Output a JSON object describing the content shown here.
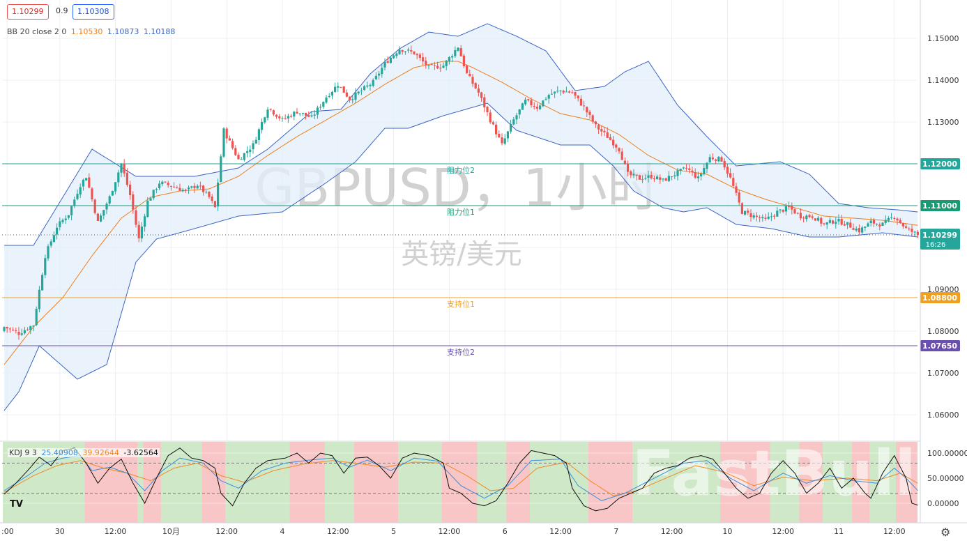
{
  "colors": {
    "up": "#26a69a",
    "down": "#ef5350",
    "bb_basis": "#f07d1a",
    "bb_band": "#3a63c4",
    "bb_fill": "#e3eff9",
    "k_line": "#3a8fdc",
    "d_line": "#f08a24",
    "j_line": "#111111",
    "bull_zone": "#cfe8c8",
    "bear_zone": "#f8c6c6",
    "resistance": "#22a69a",
    "support1": "#f0a020",
    "support2": "#6b4fb0"
  },
  "header": {
    "bid": "1.10299",
    "spread": "0.9",
    "ask": "1.10308",
    "bb_label": "BB 20 close 2 0",
    "bb_basis": "1.10530",
    "bb_upper": "1.10873",
    "bb_lower": "1.10188"
  },
  "watermark": {
    "title": "GBPUSD，1小时",
    "subtitle": "英镑/美元",
    "brand": "FastBull"
  },
  "levels": [
    {
      "label": "阻力位2",
      "value": 1.12,
      "tag": "1.12000",
      "color": "#22a69a"
    },
    {
      "label": "阻力位1",
      "value": 1.11,
      "tag": "1.11000",
      "color": "#1a9a72"
    },
    {
      "label": "支持位1",
      "value": 1.088,
      "tag": "1.08800",
      "color": "#f0a020"
    },
    {
      "label": "支持位2",
      "value": 1.0765,
      "tag": "1.07650",
      "color": "#6b4fb0"
    }
  ],
  "price_tag": {
    "value": 1.10299,
    "text": "1.10299",
    "countdown": "16:26"
  },
  "kdj": {
    "label": "KDJ 9 3",
    "k": "25.40908",
    "d": "39.92644",
    "j": "-3.62564"
  },
  "chart_data": {
    "type": "candlestick",
    "symbol": "GBPUSD",
    "interval": "1h",
    "ylim": [
      1.055,
      1.155
    ],
    "y_ticks": [
      "1.15000",
      "1.14000",
      "1.13000",
      "1.12000",
      "1.11000",
      "1.10000",
      "1.09000",
      "1.08000",
      "1.07000",
      "1.06000"
    ],
    "x_ticks": [
      ":00",
      "30",
      "12:00",
      "10月",
      "12:00",
      "4",
      "12:00",
      "5",
      "12:00",
      "6",
      "12:00",
      "7",
      "12:00",
      "10",
      "12:00",
      "11",
      "12:00"
    ],
    "close_path": [
      [
        0,
        1.081
      ],
      [
        5,
        1.0795
      ],
      [
        10,
        1.0815
      ],
      [
        14,
        1.098
      ],
      [
        18,
        1.105
      ],
      [
        22,
        1.108
      ],
      [
        26,
        1.115
      ],
      [
        28,
        1.117
      ],
      [
        32,
        1.106
      ],
      [
        36,
        1.112
      ],
      [
        40,
        1.12
      ],
      [
        43,
        1.1125
      ],
      [
        46,
        1.102
      ],
      [
        49,
        1.111
      ],
      [
        53,
        1.1155
      ],
      [
        58,
        1.1145
      ],
      [
        62,
        1.1135
      ],
      [
        66,
        1.115
      ],
      [
        70,
        1.112
      ],
      [
        72,
        1.1095
      ],
      [
        75,
        1.128
      ],
      [
        80,
        1.121
      ],
      [
        85,
        1.1245
      ],
      [
        90,
        1.1335
      ],
      [
        95,
        1.1305
      ],
      [
        100,
        1.1325
      ],
      [
        105,
        1.131
      ],
      [
        110,
        1.136
      ],
      [
        114,
        1.139
      ],
      [
        118,
        1.1355
      ],
      [
        122,
        1.1375
      ],
      [
        126,
        1.1395
      ],
      [
        130,
        1.144
      ],
      [
        135,
        1.1475
      ],
      [
        140,
        1.1465
      ],
      [
        145,
        1.143
      ],
      [
        150,
        1.1435
      ],
      [
        155,
        1.148
      ],
      [
        158,
        1.1415
      ],
      [
        162,
        1.137
      ],
      [
        166,
        1.1305
      ],
      [
        170,
        1.1245
      ],
      [
        174,
        1.1305
      ],
      [
        178,
        1.135
      ],
      [
        182,
        1.1335
      ],
      [
        186,
        1.1365
      ],
      [
        190,
        1.1375
      ],
      [
        194,
        1.137
      ],
      [
        198,
        1.1335
      ],
      [
        202,
        1.129
      ],
      [
        206,
        1.1265
      ],
      [
        210,
        1.1235
      ],
      [
        213,
        1.1175
      ],
      [
        217,
        1.1165
      ],
      [
        221,
        1.117
      ],
      [
        225,
        1.116
      ],
      [
        229,
        1.1175
      ],
      [
        233,
        1.119
      ],
      [
        237,
        1.1165
      ],
      [
        241,
        1.1215
      ],
      [
        245,
        1.121
      ],
      [
        248,
        1.1165
      ],
      [
        252,
        1.1085
      ],
      [
        256,
        1.1075
      ],
      [
        260,
        1.1065
      ],
      [
        264,
        1.1085
      ],
      [
        268,
        1.1095
      ],
      [
        272,
        1.1075
      ],
      [
        276,
        1.1075
      ],
      [
        280,
        1.1055
      ],
      [
        284,
        1.1065
      ],
      [
        288,
        1.1055
      ],
      [
        292,
        1.104
      ],
      [
        296,
        1.106
      ],
      [
        300,
        1.1055
      ],
      [
        304,
        1.1075
      ],
      [
        308,
        1.1045
      ],
      [
        311,
        1.1034
      ],
      [
        312,
        1.10299
      ]
    ],
    "bb_upper_path": [
      [
        0,
        1.1005
      ],
      [
        10,
        1.1005
      ],
      [
        20,
        1.112
      ],
      [
        30,
        1.1235
      ],
      [
        45,
        1.117
      ],
      [
        65,
        1.117
      ],
      [
        80,
        1.119
      ],
      [
        90,
        1.1235
      ],
      [
        105,
        1.1325
      ],
      [
        115,
        1.133
      ],
      [
        125,
        1.1415
      ],
      [
        135,
        1.1475
      ],
      [
        145,
        1.1515
      ],
      [
        155,
        1.1505
      ],
      [
        165,
        1.1535
      ],
      [
        175,
        1.1505
      ],
      [
        185,
        1.147
      ],
      [
        195,
        1.1375
      ],
      [
        205,
        1.1385
      ],
      [
        212,
        1.142
      ],
      [
        220,
        1.1445
      ],
      [
        230,
        1.134
      ],
      [
        240,
        1.1265
      ],
      [
        250,
        1.1195
      ],
      [
        265,
        1.1205
      ],
      [
        275,
        1.1175
      ],
      [
        285,
        1.1105
      ],
      [
        295,
        1.1095
      ],
      [
        305,
        1.109
      ],
      [
        312,
        1.1085
      ]
    ],
    "bb_lower_path": [
      [
        0,
        1.061
      ],
      [
        5,
        1.0655
      ],
      [
        12,
        1.0765
      ],
      [
        25,
        1.0685
      ],
      [
        35,
        1.072
      ],
      [
        45,
        1.0965
      ],
      [
        52,
        1.102
      ],
      [
        65,
        1.1045
      ],
      [
        80,
        1.1075
      ],
      [
        95,
        1.1085
      ],
      [
        110,
        1.1155
      ],
      [
        120,
        1.1205
      ],
      [
        130,
        1.1285
      ],
      [
        138,
        1.1285
      ],
      [
        150,
        1.1315
      ],
      [
        165,
        1.1345
      ],
      [
        175,
        1.128
      ],
      [
        190,
        1.1245
      ],
      [
        200,
        1.1245
      ],
      [
        208,
        1.1195
      ],
      [
        215,
        1.1135
      ],
      [
        225,
        1.1095
      ],
      [
        232,
        1.1085
      ],
      [
        240,
        1.1095
      ],
      [
        250,
        1.1055
      ],
      [
        262,
        1.1045
      ],
      [
        275,
        1.1025
      ],
      [
        285,
        1.1025
      ],
      [
        300,
        1.1035
      ],
      [
        312,
        1.1025
      ]
    ],
    "bb_basis_path": [
      [
        0,
        1.072
      ],
      [
        10,
        1.081
      ],
      [
        20,
        1.088
      ],
      [
        30,
        1.098
      ],
      [
        40,
        1.107
      ],
      [
        50,
        1.112
      ],
      [
        60,
        1.1135
      ],
      [
        70,
        1.114
      ],
      [
        80,
        1.117
      ],
      [
        90,
        1.122
      ],
      [
        100,
        1.1265
      ],
      [
        110,
        1.1305
      ],
      [
        120,
        1.1345
      ],
      [
        130,
        1.139
      ],
      [
        140,
        1.143
      ],
      [
        150,
        1.1445
      ],
      [
        155,
        1.1445
      ],
      [
        160,
        1.143
      ],
      [
        170,
        1.1395
      ],
      [
        180,
        1.1355
      ],
      [
        190,
        1.132
      ],
      [
        200,
        1.1305
      ],
      [
        210,
        1.127
      ],
      [
        220,
        1.122
      ],
      [
        230,
        1.1185
      ],
      [
        240,
        1.1175
      ],
      [
        250,
        1.114
      ],
      [
        260,
        1.1115
      ],
      [
        270,
        1.1095
      ],
      [
        280,
        1.1075
      ],
      [
        290,
        1.107
      ],
      [
        300,
        1.1065
      ],
      [
        312,
        1.1053
      ]
    ],
    "kdj_ylim": [
      -30,
      130
    ],
    "kdj_ticks": [
      "100.00000",
      "50.00000",
      "0.00000"
    ],
    "kdj_zones": [
      [
        "bull",
        0,
        28
      ],
      [
        "bear",
        28,
        46
      ],
      [
        "bull",
        46,
        48
      ],
      [
        "bear",
        48,
        54
      ],
      [
        "bull",
        54,
        68
      ],
      [
        "bear",
        68,
        76
      ],
      [
        "bull",
        76,
        98
      ],
      [
        "bear",
        98,
        110
      ],
      [
        "bull",
        110,
        120
      ],
      [
        "bear",
        120,
        135
      ],
      [
        "bull",
        135,
        150
      ],
      [
        "bear",
        150,
        162
      ],
      [
        "bull",
        162,
        172
      ],
      [
        "bear",
        172,
        180
      ],
      [
        "bull",
        180,
        200
      ],
      [
        "bear",
        200,
        215
      ],
      [
        "bull",
        215,
        245
      ],
      [
        "bear",
        245,
        262
      ],
      [
        "bull",
        262,
        272
      ],
      [
        "bear",
        272,
        280
      ],
      [
        "bull",
        280,
        290
      ],
      [
        "bear",
        290,
        296
      ],
      [
        "bull",
        296,
        305
      ],
      [
        "bear",
        305,
        312
      ]
    ],
    "kdj_j_path": [
      [
        0,
        18
      ],
      [
        4,
        40
      ],
      [
        8,
        65
      ],
      [
        12,
        92
      ],
      [
        16,
        75
      ],
      [
        20,
        105
      ],
      [
        24,
        110
      ],
      [
        28,
        80
      ],
      [
        32,
        40
      ],
      [
        36,
        70
      ],
      [
        40,
        88
      ],
      [
        44,
        40
      ],
      [
        48,
        0
      ],
      [
        52,
        50
      ],
      [
        56,
        95
      ],
      [
        60,
        110
      ],
      [
        64,
        90
      ],
      [
        68,
        85
      ],
      [
        72,
        70
      ],
      [
        74,
        20
      ],
      [
        78,
        -5
      ],
      [
        82,
        40
      ],
      [
        86,
        70
      ],
      [
        90,
        85
      ],
      [
        96,
        90
      ],
      [
        100,
        100
      ],
      [
        104,
        80
      ],
      [
        108,
        100
      ],
      [
        112,
        95
      ],
      [
        116,
        60
      ],
      [
        120,
        90
      ],
      [
        124,
        92
      ],
      [
        128,
        75
      ],
      [
        132,
        50
      ],
      [
        136,
        90
      ],
      [
        140,
        100
      ],
      [
        145,
        95
      ],
      [
        150,
        80
      ],
      [
        152,
        30
      ],
      [
        156,
        20
      ],
      [
        160,
        0
      ],
      [
        164,
        -5
      ],
      [
        168,
        5
      ],
      [
        172,
        40
      ],
      [
        176,
        80
      ],
      [
        180,
        105
      ],
      [
        184,
        100
      ],
      [
        188,
        95
      ],
      [
        192,
        80
      ],
      [
        194,
        30
      ],
      [
        198,
        -5
      ],
      [
        202,
        -15
      ],
      [
        206,
        -10
      ],
      [
        210,
        10
      ],
      [
        214,
        20
      ],
      [
        218,
        30
      ],
      [
        222,
        60
      ],
      [
        226,
        70
      ],
      [
        230,
        75
      ],
      [
        234,
        90
      ],
      [
        238,
        95
      ],
      [
        242,
        88
      ],
      [
        246,
        60
      ],
      [
        250,
        30
      ],
      [
        254,
        10
      ],
      [
        258,
        20
      ],
      [
        262,
        60
      ],
      [
        266,
        85
      ],
      [
        270,
        60
      ],
      [
        274,
        20
      ],
      [
        278,
        40
      ],
      [
        282,
        70
      ],
      [
        286,
        30
      ],
      [
        290,
        50
      ],
      [
        294,
        20
      ],
      [
        296,
        10
      ],
      [
        300,
        60
      ],
      [
        304,
        95
      ],
      [
        308,
        50
      ],
      [
        310,
        0
      ],
      [
        312,
        -3.6
      ]
    ],
    "kdj_k_path": [
      [
        0,
        25
      ],
      [
        8,
        55
      ],
      [
        14,
        80
      ],
      [
        20,
        90
      ],
      [
        26,
        95
      ],
      [
        30,
        65
      ],
      [
        36,
        72
      ],
      [
        42,
        60
      ],
      [
        48,
        25
      ],
      [
        54,
        65
      ],
      [
        60,
        90
      ],
      [
        68,
        80
      ],
      [
        74,
        45
      ],
      [
        80,
        30
      ],
      [
        88,
        65
      ],
      [
        96,
        80
      ],
      [
        104,
        86
      ],
      [
        112,
        90
      ],
      [
        118,
        72
      ],
      [
        124,
        86
      ],
      [
        132,
        65
      ],
      [
        140,
        90
      ],
      [
        148,
        84
      ],
      [
        156,
        35
      ],
      [
        164,
        10
      ],
      [
        172,
        35
      ],
      [
        180,
        85
      ],
      [
        190,
        88
      ],
      [
        196,
        35
      ],
      [
        204,
        5
      ],
      [
        212,
        20
      ],
      [
        222,
        50
      ],
      [
        232,
        80
      ],
      [
        240,
        85
      ],
      [
        248,
        50
      ],
      [
        256,
        25
      ],
      [
        266,
        60
      ],
      [
        274,
        40
      ],
      [
        282,
        55
      ],
      [
        290,
        45
      ],
      [
        298,
        40
      ],
      [
        304,
        70
      ],
      [
        308,
        50
      ],
      [
        312,
        25.4
      ]
    ],
    "kdj_d_path": [
      [
        0,
        22
      ],
      [
        10,
        55
      ],
      [
        18,
        75
      ],
      [
        26,
        85
      ],
      [
        34,
        70
      ],
      [
        42,
        60
      ],
      [
        50,
        45
      ],
      [
        58,
        70
      ],
      [
        66,
        80
      ],
      [
        74,
        55
      ],
      [
        82,
        42
      ],
      [
        92,
        65
      ],
      [
        102,
        78
      ],
      [
        112,
        85
      ],
      [
        120,
        80
      ],
      [
        130,
        72
      ],
      [
        140,
        82
      ],
      [
        150,
        80
      ],
      [
        158,
        55
      ],
      [
        166,
        25
      ],
      [
        174,
        30
      ],
      [
        182,
        70
      ],
      [
        192,
        82
      ],
      [
        200,
        45
      ],
      [
        208,
        15
      ],
      [
        216,
        25
      ],
      [
        226,
        50
      ],
      [
        236,
        75
      ],
      [
        246,
        62
      ],
      [
        256,
        35
      ],
      [
        266,
        52
      ],
      [
        276,
        45
      ],
      [
        288,
        50
      ],
      [
        298,
        45
      ],
      [
        306,
        60
      ],
      [
        312,
        39.9
      ]
    ]
  }
}
